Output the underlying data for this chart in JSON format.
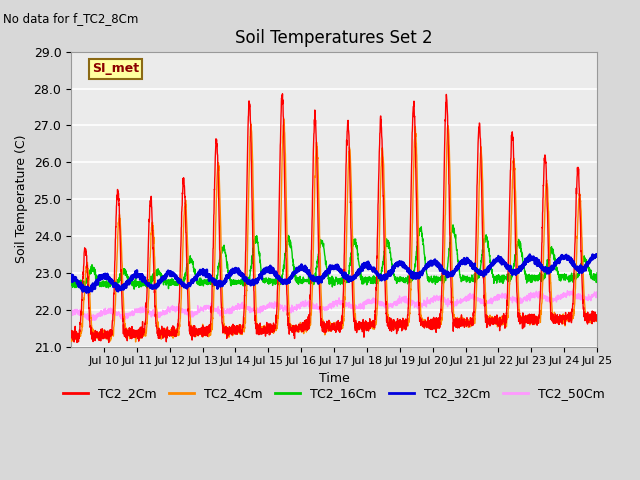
{
  "title": "Soil Temperatures Set 2",
  "subtitle": "No data for f_TC2_8Cm",
  "xlabel": "Time",
  "ylabel": "Soil Temperature (C)",
  "ylim": [
    21.0,
    29.0
  ],
  "yticks": [
    21.0,
    22.0,
    23.0,
    24.0,
    25.0,
    26.0,
    27.0,
    28.0,
    29.0
  ],
  "xtick_labels": [
    "Jul 10",
    "Jul 11",
    "Jul 12",
    "Jul 13",
    "Jul 14",
    "Jul 15",
    "Jul 16",
    "Jul 17",
    "Jul 18",
    "Jul 19",
    "Jul 20",
    "Jul 21",
    "Jul 22",
    "Jul 23",
    "Jul 24",
    "Jul 25"
  ],
  "legend_box_label": "SI_met",
  "legend_box_color": "#ffffa0",
  "legend_box_border": "#8b6914",
  "colors": {
    "TC2_2Cm": "#ff0000",
    "TC2_4Cm": "#ff8800",
    "TC2_16Cm": "#00cc00",
    "TC2_32Cm": "#0000dd",
    "TC2_50Cm": "#ff99ff"
  },
  "bg_color": "#e8e8e8",
  "plot_bg": "#ebebeb",
  "grid_color": "#ffffff",
  "n_points": 2880
}
